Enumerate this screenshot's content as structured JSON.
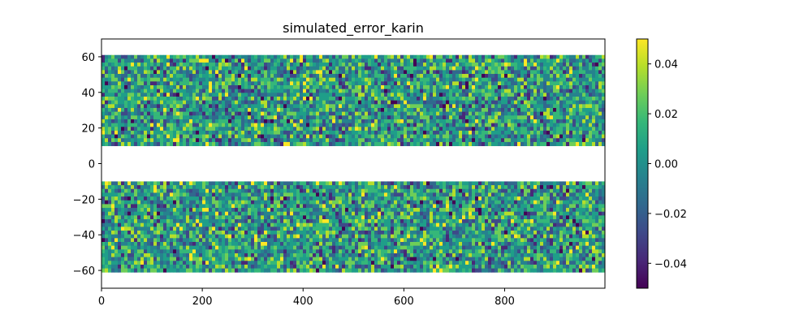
{
  "chart_data": {
    "type": "heatmap",
    "title": "simulated_error_karin",
    "xlabel": "",
    "ylabel": "",
    "xlim": [
      0,
      999
    ],
    "ylim": [
      -70,
      70
    ],
    "x_ticks": [
      {
        "value": 0,
        "label": "0"
      },
      {
        "value": 200,
        "label": "200"
      },
      {
        "value": 400,
        "label": "400"
      },
      {
        "value": 600,
        "label": "600"
      },
      {
        "value": 800,
        "label": "800"
      }
    ],
    "y_ticks": [
      {
        "value": 60,
        "label": "60"
      },
      {
        "value": 40,
        "label": "40"
      },
      {
        "value": 20,
        "label": "20"
      },
      {
        "value": 0,
        "label": "0"
      },
      {
        "value": -20,
        "label": "−20"
      },
      {
        "value": -40,
        "label": "−40"
      },
      {
        "value": -60,
        "label": "−60"
      }
    ],
    "swaths": [
      {
        "y_range": [
          10,
          61
        ],
        "x_range": [
          0,
          999
        ]
      },
      {
        "y_range": [
          -61,
          -10
        ],
        "x_range": [
          0,
          999
        ]
      }
    ],
    "gap": [
      -10,
      10
    ],
    "grid": false,
    "colorbar": {
      "colormap": "viridis",
      "range": [
        -0.05,
        0.05
      ],
      "ticks": [
        {
          "value": 0.04,
          "label": "0.04"
        },
        {
          "value": 0.02,
          "label": "0.02"
        },
        {
          "value": 0.0,
          "label": "0.00"
        },
        {
          "value": -0.02,
          "label": "−0.02"
        },
        {
          "value": -0.04,
          "label": "−0.04"
        }
      ]
    },
    "colors": {
      "viridis": [
        "#440154",
        "#482878",
        "#3e4989",
        "#31688e",
        "#26828e",
        "#1f9e89",
        "#35b779",
        "#6ece58",
        "#b5de2b",
        "#fde725"
      ]
    }
  }
}
